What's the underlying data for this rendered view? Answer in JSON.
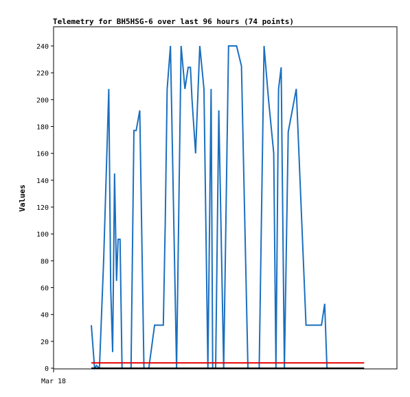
{
  "chart_data": {
    "type": "line",
    "title": "Telemetry for BH5HSG-6 over last 96 hours (74 points)",
    "ylabel": "Values",
    "xlabel": "",
    "x_tick_labels": [
      "Mar 18"
    ],
    "ylim": [
      0,
      255
    ],
    "y_ticks": [
      0,
      20,
      40,
      60,
      80,
      100,
      120,
      140,
      160,
      180,
      200,
      220,
      240
    ],
    "grid": false,
    "legend": "none",
    "series": [
      {
        "color": "#1a6fbf",
        "x": [
          0,
          1.0,
          1.6,
          2.5,
          3.8,
          5.4,
          6.0,
          6.6,
          7.2,
          7.8,
          8.3,
          8.9,
          9.5,
          10.1,
          10.7,
          11.5,
          12.3,
          13.2,
          13.9,
          15.0,
          16.3,
          17.8,
          19.6,
          21.2,
          22.3,
          22.9,
          23.5,
          24.5,
          26.4,
          27.8,
          29.0,
          30.0,
          30.7,
          31.2,
          32.3,
          33.6,
          34.9,
          36.1,
          37.1,
          37.6,
          38.5,
          39.5,
          41.0,
          42.5,
          43.7,
          45.0,
          46.5,
          48.5,
          49.5,
          52.0,
          53.5,
          54.9,
          56.5,
          57.2,
          58.0,
          58.8,
          59.8,
          61.0,
          63.5,
          66.5,
          68.5,
          70.0,
          71.3,
          72.3,
          73.0,
          73.6,
          74.2,
          75.0,
          76.0,
          77.3,
          78.5,
          82.0,
          83.5,
          84.5
        ],
        "values": [
          32,
          0,
          2,
          0,
          80,
          208,
          60,
          12,
          145,
          65,
          96,
          96,
          0,
          0,
          0,
          0,
          0,
          177,
          177,
          192,
          0,
          0,
          32,
          32,
          32,
          108,
          208,
          240,
          0,
          240,
          208,
          224,
          224,
          200,
          160,
          240,
          208,
          0,
          208,
          0,
          0,
          192,
          0,
          240,
          240,
          240,
          225,
          0,
          0,
          0,
          240,
          200,
          160,
          0,
          208,
          224,
          0,
          176,
          208,
          32,
          32,
          32,
          32,
          48,
          0,
          0,
          0,
          0,
          0,
          0,
          0,
          0,
          0,
          0
        ]
      },
      {
        "color": "#e60000",
        "x": [
          0,
          84.5
        ],
        "values": [
          4,
          4
        ]
      },
      {
        "color": "#000000",
        "x": [
          0,
          84.5
        ],
        "values": [
          0,
          0
        ]
      }
    ]
  }
}
